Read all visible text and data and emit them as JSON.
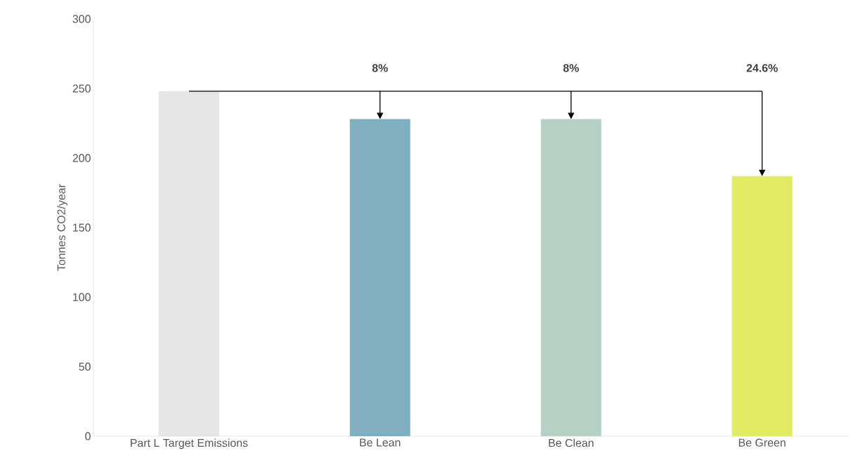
{
  "chart_data": {
    "type": "bar",
    "ylabel": "Tonnes CO2/year",
    "categories": [
      "Part L Target Emissions",
      "Be Lean",
      "Be Clean",
      "Be Green"
    ],
    "values": [
      248,
      228,
      228,
      187
    ],
    "colors": [
      "#e6e6e6",
      "#80afbf",
      "#b5d1c5",
      "#e1eb63"
    ],
    "ylim": [
      0,
      300
    ],
    "yticks": [
      0,
      50,
      100,
      150,
      200,
      250,
      300
    ],
    "grid": false,
    "ref_lines": [
      {
        "axis": "y",
        "value": 248
      }
    ],
    "annotations": [
      "8%",
      "8%",
      "24.6%"
    ]
  }
}
